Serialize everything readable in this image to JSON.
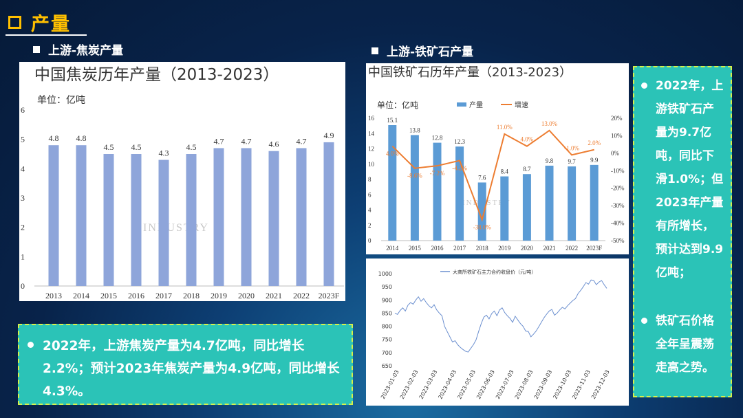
{
  "page": {
    "section_title": "产量",
    "coke_heading": "上游-焦炭产量",
    "ore_heading": "上游-铁矿石产量"
  },
  "colors": {
    "bar": "#8ea5da",
    "ore_bar": "#5b9bd5",
    "ore_line": "#ed7d31",
    "price_line": "#6b8fcf",
    "note_bg": "#2bc3b7",
    "title": "#ffc000"
  },
  "coke_note": "2022年，上游焦炭产量为4.7亿吨，同比增长2.2%；预计2023年焦炭产量为4.9亿吨，同比增长4.3%。",
  "ore_note": {
    "line1": "2022年，上游铁矿石产量为9.7亿吨，同比下滑1.0%；但2023年产量有所增长，预计达到9.9亿吨；",
    "line2": "铁矿石价格全年呈震荡走高之势。"
  },
  "chart_data": [
    {
      "type": "bar",
      "title": "中国焦炭历年产量（2013-2023）",
      "unit": "单位：亿吨",
      "categories": [
        "2013",
        "2014",
        "2015",
        "2016",
        "2017",
        "2018",
        "2019",
        "2020",
        "2021",
        "2022",
        "2023F"
      ],
      "values": [
        4.8,
        4.8,
        4.5,
        4.5,
        4.3,
        4.5,
        4.7,
        4.7,
        4.6,
        4.7,
        4.9
      ],
      "ylim": [
        0,
        6
      ],
      "yticks": [
        0,
        1,
        2,
        3,
        4,
        5,
        6
      ],
      "watermark": "INDUSTRY"
    },
    {
      "type": "bar+line",
      "title": "中国铁矿石历年产量（2013-2023）",
      "unit": "单位：亿吨",
      "categories": [
        "2014",
        "2015",
        "2016",
        "2017",
        "2018",
        "2019",
        "2020",
        "2021",
        "2022",
        "2023F"
      ],
      "series": [
        {
          "name": "产量",
          "type": "bar",
          "values": [
            15.1,
            13.8,
            12.8,
            12.3,
            7.6,
            8.4,
            8.7,
            9.8,
            9.7,
            9.9
          ]
        },
        {
          "name": "增速",
          "type": "line",
          "values": [
            4.0,
            -8.6,
            -7.2,
            -4.2,
            -38.0,
            11.0,
            4.0,
            13.0,
            -1.0,
            2.0
          ],
          "labels": [
            "4.0%",
            "-8.6%",
            "-7.2%",
            "-4.2%",
            "-38.0%",
            "11.0%",
            "4.0%",
            "13.0%",
            "-1.0%",
            "2.0%"
          ]
        }
      ],
      "ylim_left": [
        0,
        16
      ],
      "yticks_left": [
        0,
        2,
        4,
        6,
        8,
        10,
        12,
        14,
        16
      ],
      "ylim_right": [
        -50,
        20
      ],
      "yticks_right": [
        "-50%",
        "-40%",
        "-30%",
        "-20%",
        "-10%",
        "0%",
        "10%",
        "20%"
      ],
      "yticks_right_values": [
        -50,
        -40,
        -30,
        -20,
        -10,
        0,
        10,
        20
      ],
      "watermark": "INDUSTRY"
    },
    {
      "type": "line",
      "legend": "大商所铁矿石主力合约收盘价（元/吨）",
      "x_labels": [
        "2023-01-03",
        "2023-02-03",
        "2023-03-03",
        "2023-04-03",
        "2023-05-03",
        "2023-06-03",
        "2023-07-03",
        "2023-08-03",
        "2023-09-03",
        "2023-10-03",
        "2023-11-03",
        "2023-12-03"
      ],
      "ylim": [
        650,
        1000
      ],
      "yticks": [
        650,
        700,
        750,
        800,
        850,
        900,
        950,
        1000
      ],
      "values": [
        850,
        845,
        860,
        870,
        858,
        880,
        890,
        884,
        900,
        912,
        895,
        905,
        890,
        878,
        870,
        882,
        862,
        850,
        840,
        800,
        780,
        760,
        740,
        745,
        730,
        720,
        712,
        705,
        702,
        716,
        730,
        748,
        780,
        810,
        835,
        842,
        828,
        848,
        858,
        840,
        862,
        870,
        852,
        840,
        830,
        815,
        838,
        824,
        810,
        800,
        782,
        780,
        760,
        770,
        782,
        798,
        815,
        832,
        846,
        858,
        864,
        842,
        850,
        862,
        872,
        866,
        878,
        888,
        898,
        905,
        924,
        936,
        950,
        966,
        960,
        976,
        974,
        958,
        968,
        974,
        958,
        944
      ]
    }
  ]
}
